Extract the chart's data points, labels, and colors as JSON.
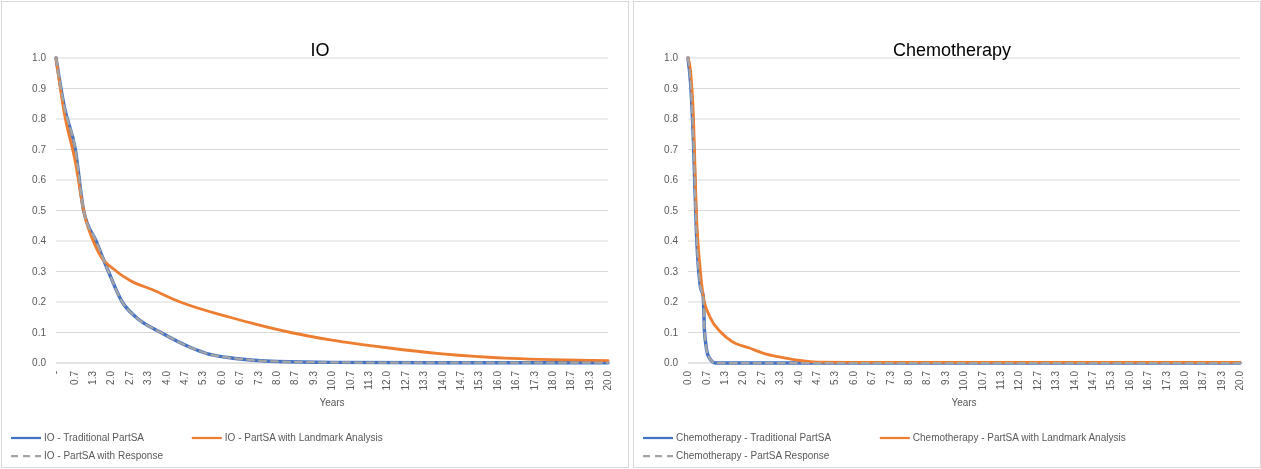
{
  "chart_data": [
    {
      "type": "line",
      "title": "IO",
      "xlabel": "Years",
      "xlim": [
        0,
        20
      ],
      "ylim": [
        0,
        1
      ],
      "yticks": [
        {
          "value": 0,
          "label": "0.0"
        },
        {
          "value": 0.1,
          "label": "0.1"
        },
        {
          "value": 0.2,
          "label": "0.2"
        },
        {
          "value": 0.3,
          "label": "0.3"
        },
        {
          "value": 0.4,
          "label": "0.4"
        },
        {
          "value": 0.5,
          "label": "0.5"
        },
        {
          "value": 0.6,
          "label": "0.6"
        },
        {
          "value": 0.7,
          "label": "0.7"
        },
        {
          "value": 0.8,
          "label": "0.8"
        },
        {
          "value": 0.9,
          "label": "0.9"
        },
        {
          "value": 1,
          "label": "1.0"
        }
      ],
      "xticks": [
        {
          "value": 0,
          "label": "-"
        },
        {
          "value": 0.667,
          "label": "0.7"
        },
        {
          "value": 1.333,
          "label": "1.3"
        },
        {
          "value": 2,
          "label": "2.0"
        },
        {
          "value": 2.667,
          "label": "2.7"
        },
        {
          "value": 3.333,
          "label": "3.3"
        },
        {
          "value": 4,
          "label": "4.0"
        },
        {
          "value": 4.667,
          "label": "4.7"
        },
        {
          "value": 5.333,
          "label": "5.3"
        },
        {
          "value": 6,
          "label": "6.0"
        },
        {
          "value": 6.667,
          "label": "6.7"
        },
        {
          "value": 7.333,
          "label": "7.3"
        },
        {
          "value": 8,
          "label": "8.0"
        },
        {
          "value": 8.667,
          "label": "8.7"
        },
        {
          "value": 9.333,
          "label": "9.3"
        },
        {
          "value": 10,
          "label": "10.0"
        },
        {
          "value": 10.667,
          "label": "10.7"
        },
        {
          "value": 11.333,
          "label": "11.3"
        },
        {
          "value": 12,
          "label": "12.0"
        },
        {
          "value": 12.667,
          "label": "12.7"
        },
        {
          "value": 13.333,
          "label": "13.3"
        },
        {
          "value": 14,
          "label": "14.0"
        },
        {
          "value": 14.667,
          "label": "14.7"
        },
        {
          "value": 15.333,
          "label": "15.3"
        },
        {
          "value": 16,
          "label": "16.0"
        },
        {
          "value": 16.667,
          "label": "16.7"
        },
        {
          "value": 17.333,
          "label": "17.3"
        },
        {
          "value": 18,
          "label": "18.0"
        },
        {
          "value": 18.667,
          "label": "18.7"
        },
        {
          "value": 19.333,
          "label": "19.3"
        },
        {
          "value": 20,
          "label": "20.0"
        }
      ],
      "grid": "y",
      "legend": "bottom",
      "series": [
        {
          "name": "IO - Traditional PartSA",
          "color": "#4472c4",
          "x": [
            0,
            0.3,
            0.7,
            1,
            1.45,
            1.9,
            2.4,
            2.9,
            3.8,
            4.9,
            5.5,
            6.5,
            8,
            10,
            14,
            20
          ],
          "values": [
            1,
            0.84,
            0.7,
            0.5,
            0.4,
            0.3,
            0.2,
            0.15,
            0.1,
            0.05,
            0.03,
            0.015,
            0.005,
            0.002,
            0.001,
            0.001
          ]
        },
        {
          "name": "IO - PartSA with Landmark Analysis",
          "color": "#ed7d31",
          "x": [
            0,
            0.3,
            0.7,
            1,
            1.5,
            2.2,
            2.7,
            3.5,
            4.5,
            6.3,
            8.5,
            10,
            12,
            14,
            16.5,
            20
          ],
          "values": [
            1,
            0.82,
            0.66,
            0.5,
            0.37,
            0.3,
            0.27,
            0.24,
            0.2,
            0.15,
            0.1,
            0.075,
            0.05,
            0.03,
            0.015,
            0.008
          ]
        },
        {
          "name": "IO - PartSA with Response",
          "color": "#a5a5a5",
          "line_style": "dashed",
          "x": [
            0,
            0.3,
            0.7,
            1,
            1.45,
            1.9,
            2.4,
            2.9,
            3.8,
            4.9,
            5.5,
            6.5,
            8,
            10,
            14,
            20
          ],
          "values": [
            1,
            0.84,
            0.7,
            0.5,
            0.4,
            0.3,
            0.2,
            0.15,
            0.1,
            0.05,
            0.03,
            0.015,
            0.005,
            0.002,
            0.001,
            0.001
          ]
        }
      ]
    },
    {
      "type": "line",
      "title": "Chemotherapy",
      "xlabel": "Years",
      "xlim": [
        0,
        20
      ],
      "ylim": [
        0,
        1
      ],
      "yticks": [
        {
          "value": 0,
          "label": "0.0"
        },
        {
          "value": 0.1,
          "label": "0.1"
        },
        {
          "value": 0.2,
          "label": "0.2"
        },
        {
          "value": 0.3,
          "label": "0.3"
        },
        {
          "value": 0.4,
          "label": "0.4"
        },
        {
          "value": 0.5,
          "label": "0.5"
        },
        {
          "value": 0.6,
          "label": "0.6"
        },
        {
          "value": 0.7,
          "label": "0.7"
        },
        {
          "value": 0.8,
          "label": "0.8"
        },
        {
          "value": 0.9,
          "label": "0.9"
        },
        {
          "value": 1,
          "label": "1.0"
        }
      ],
      "xticks": [
        {
          "value": 0,
          "label": "0.0"
        },
        {
          "value": 0.667,
          "label": "0.7"
        },
        {
          "value": 1.333,
          "label": "1.3"
        },
        {
          "value": 2,
          "label": "2.0"
        },
        {
          "value": 2.667,
          "label": "2.7"
        },
        {
          "value": 3.333,
          "label": "3.3"
        },
        {
          "value": 4,
          "label": "4.0"
        },
        {
          "value": 4.667,
          "label": "4.7"
        },
        {
          "value": 5.333,
          "label": "5.3"
        },
        {
          "value": 6,
          "label": "6.0"
        },
        {
          "value": 6.667,
          "label": "6.7"
        },
        {
          "value": 7.333,
          "label": "7.3"
        },
        {
          "value": 8,
          "label": "8.0"
        },
        {
          "value": 8.667,
          "label": "8.7"
        },
        {
          "value": 9.333,
          "label": "9.3"
        },
        {
          "value": 10,
          "label": "10.0"
        },
        {
          "value": 10.667,
          "label": "10.7"
        },
        {
          "value": 11.333,
          "label": "11.3"
        },
        {
          "value": 12,
          "label": "12.0"
        },
        {
          "value": 12.667,
          "label": "12.7"
        },
        {
          "value": 13.333,
          "label": "13.3"
        },
        {
          "value": 14,
          "label": "14.0"
        },
        {
          "value": 14.667,
          "label": "14.7"
        },
        {
          "value": 15.333,
          "label": "15.3"
        },
        {
          "value": 16,
          "label": "16.0"
        },
        {
          "value": 16.667,
          "label": "16.7"
        },
        {
          "value": 17.333,
          "label": "17.3"
        },
        {
          "value": 18,
          "label": "18.0"
        },
        {
          "value": 18.667,
          "label": "18.7"
        },
        {
          "value": 19.333,
          "label": "19.3"
        },
        {
          "value": 20,
          "label": "20.0"
        }
      ],
      "grid": "y",
      "legend": "bottom",
      "series": [
        {
          "name": "Chemotherapy - Traditional PartSA",
          "color": "#4472c4",
          "x": [
            0,
            0.1,
            0.2,
            0.3,
            0.45,
            0.55,
            0.6,
            0.75,
            1,
            20
          ],
          "values": [
            1,
            0.91,
            0.72,
            0.44,
            0.25,
            0.22,
            0.1,
            0.02,
            0,
            0
          ]
        },
        {
          "name": "Chemotherapy - PartSA with Landmark Analysis",
          "color": "#ed7d31",
          "x": [
            0,
            0.1,
            0.2,
            0.3,
            0.45,
            0.55,
            0.8,
            1.2,
            1.6,
            2.2,
            2.8,
            3.3,
            3.9,
            4.7,
            6,
            20
          ],
          "values": [
            1,
            0.95,
            0.8,
            0.5,
            0.3,
            0.22,
            0.15,
            0.1,
            0.07,
            0.05,
            0.03,
            0.02,
            0.01,
            0.003,
            0.002,
            0.002
          ]
        },
        {
          "name": "Chemotherapy - PartSA Response",
          "color": "#a5a5a5",
          "line_style": "dashed",
          "x": [
            0,
            0.1,
            0.2,
            0.3,
            0.45,
            0.55,
            0.6,
            0.75,
            1,
            20
          ],
          "values": [
            1,
            0.91,
            0.72,
            0.44,
            0.25,
            0.22,
            0.1,
            0.02,
            0,
            0
          ]
        }
      ]
    }
  ]
}
